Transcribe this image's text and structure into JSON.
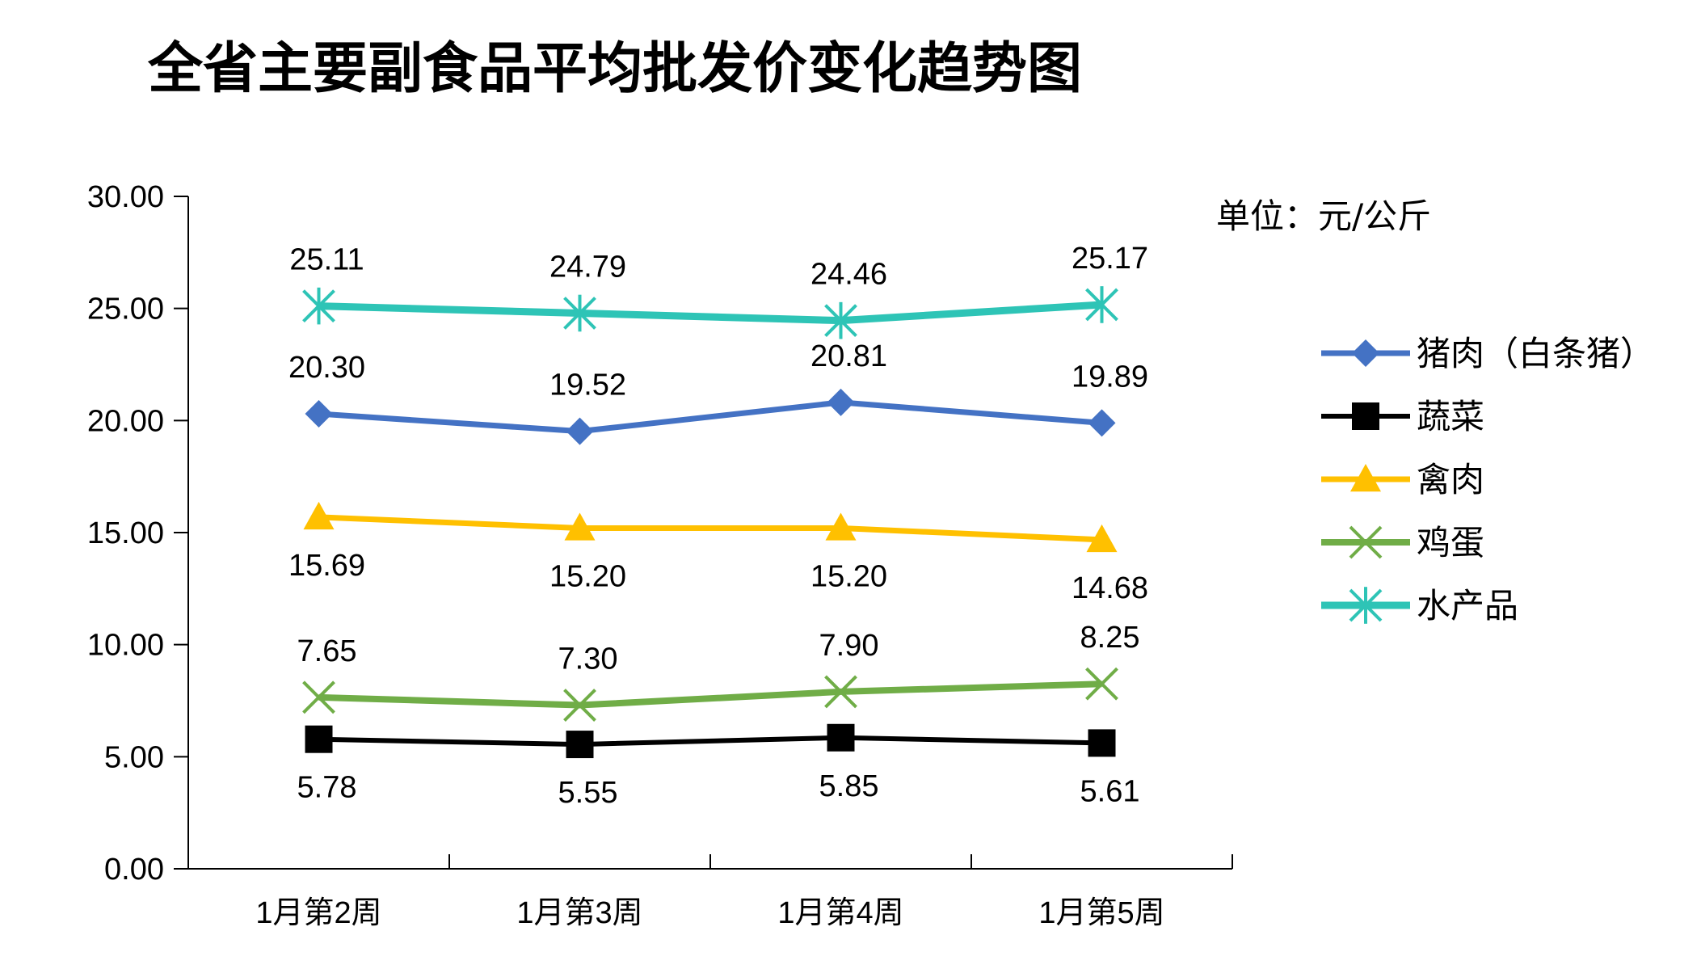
{
  "chart_data": {
    "type": "line",
    "title": "全省主要副食品平均批发价变化趋势图",
    "unit_label": "单位：元/公斤",
    "categories": [
      "1月第2周",
      "1月第3周",
      "1月第4周",
      "1月第5周"
    ],
    "ylim": [
      0,
      30
    ],
    "yticks": [
      "0.00",
      "5.00",
      "10.00",
      "15.00",
      "20.00",
      "25.00",
      "30.00"
    ],
    "grid": false,
    "legend_position": "right",
    "series": [
      {
        "name": "猪肉（白条猪）",
        "color": "#4472C4",
        "marker": "diamond",
        "values": [
          20.3,
          19.52,
          20.81,
          19.89
        ],
        "labels": [
          "20.30",
          "19.52",
          "20.81",
          "19.89"
        ],
        "label_pos": "above"
      },
      {
        "name": "蔬菜",
        "color": "#000000",
        "marker": "square",
        "values": [
          5.78,
          5.55,
          5.85,
          5.61
        ],
        "labels": [
          "5.78",
          "5.55",
          "5.85",
          "5.61"
        ],
        "label_pos": "below"
      },
      {
        "name": "禽肉",
        "color": "#FFC000",
        "marker": "triangle",
        "values": [
          15.69,
          15.2,
          15.2,
          14.68
        ],
        "labels": [
          "15.69",
          "15.20",
          "15.20",
          "14.68"
        ],
        "label_pos": "below"
      },
      {
        "name": "鸡蛋",
        "color": "#70AD47",
        "marker": "x",
        "values": [
          7.65,
          7.3,
          7.9,
          8.25
        ],
        "labels": [
          "7.65",
          "7.30",
          "7.90",
          "8.25"
        ],
        "label_pos": "above"
      },
      {
        "name": "水产品",
        "color": "#2EC4B6",
        "marker": "star",
        "values": [
          25.11,
          24.79,
          24.46,
          25.17
        ],
        "labels": [
          "25.11",
          "24.79",
          "24.46",
          "25.17"
        ],
        "label_pos": "above"
      }
    ]
  }
}
